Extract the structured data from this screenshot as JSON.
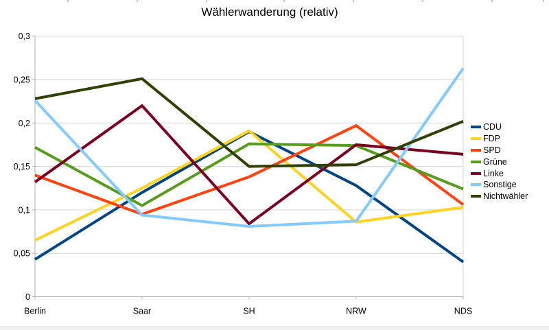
{
  "chart_data": {
    "type": "line",
    "title": "Wählerwanderung (relativ)",
    "categories": [
      "Berlin",
      "Saar",
      "SH",
      "NRW",
      "NDS"
    ],
    "series": [
      {
        "name": "CDU",
        "color": "#004586",
        "values": [
          0.043,
          0.12,
          0.19,
          0.128,
          0.04
        ]
      },
      {
        "name": "FDP",
        "color": "#FFD320",
        "values": [
          0.065,
          0.125,
          0.191,
          0.086,
          0.103
        ]
      },
      {
        "name": "SPD",
        "color": "#FF420E",
        "values": [
          0.14,
          0.095,
          0.138,
          0.197,
          0.106
        ]
      },
      {
        "name": "Grüne",
        "color": "#579D1C",
        "values": [
          0.172,
          0.105,
          0.176,
          0.174,
          0.124
        ]
      },
      {
        "name": "Linke",
        "color": "#7E0021",
        "values": [
          0.132,
          0.22,
          0.084,
          0.175,
          0.164
        ]
      },
      {
        "name": "Sonstige",
        "color": "#83CAFF",
        "values": [
          0.226,
          0.094,
          0.081,
          0.087,
          0.263
        ]
      },
      {
        "name": "Nichtwähler",
        "color": "#314004",
        "values": [
          0.228,
          0.251,
          0.15,
          0.152,
          0.202
        ]
      }
    ],
    "y_ticks": [
      {
        "value": 0,
        "label": "0"
      },
      {
        "value": 0.05,
        "label": "0,05"
      },
      {
        "value": 0.1,
        "label": "0,1"
      },
      {
        "value": 0.15,
        "label": "0,15"
      },
      {
        "value": 0.2,
        "label": "0,2"
      },
      {
        "value": 0.25,
        "label": "0,25"
      },
      {
        "value": 0.3,
        "label": "0,3"
      }
    ],
    "ylim": [
      0,
      0.3
    ],
    "grid": true,
    "legend_position": "right"
  }
}
